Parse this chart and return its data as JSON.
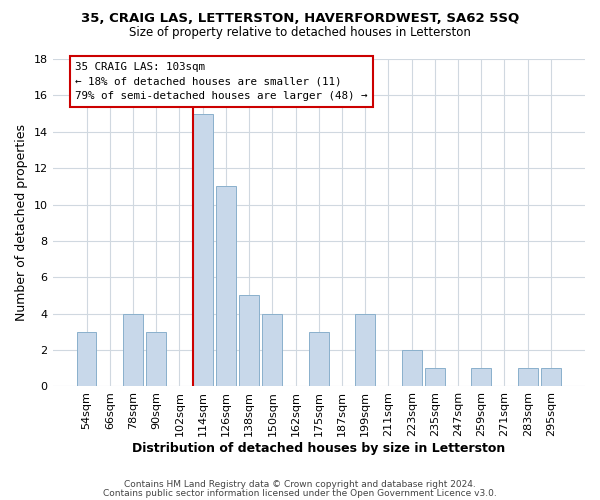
{
  "title1": "35, CRAIG LAS, LETTERSTON, HAVERFORDWEST, SA62 5SQ",
  "title2": "Size of property relative to detached houses in Letterston",
  "xlabel": "Distribution of detached houses by size in Letterston",
  "ylabel": "Number of detached properties",
  "bar_color": "#c8d8ea",
  "bar_edge_color": "#8ab0cc",
  "categories": [
    "54sqm",
    "66sqm",
    "78sqm",
    "90sqm",
    "102sqm",
    "114sqm",
    "126sqm",
    "138sqm",
    "150sqm",
    "162sqm",
    "175sqm",
    "187sqm",
    "199sqm",
    "211sqm",
    "223sqm",
    "235sqm",
    "247sqm",
    "259sqm",
    "271sqm",
    "283sqm",
    "295sqm"
  ],
  "values": [
    3,
    0,
    4,
    3,
    0,
    15,
    11,
    5,
    4,
    0,
    3,
    0,
    4,
    0,
    2,
    1,
    0,
    1,
    0,
    1,
    1
  ],
  "redline_index": 4.58,
  "annotation_text_line1": "35 CRAIG LAS: 103sqm",
  "annotation_text_line2": "← 18% of detached houses are smaller (11)",
  "annotation_text_line3": "79% of semi-detached houses are larger (48) →",
  "annotation_box_color": "#ffffff",
  "annotation_box_edge": "#cc0000",
  "ylim": [
    0,
    18
  ],
  "yticks": [
    0,
    2,
    4,
    6,
    8,
    10,
    12,
    14,
    16,
    18
  ],
  "footnote1": "Contains HM Land Registry data © Crown copyright and database right 2024.",
  "footnote2": "Contains public sector information licensed under the Open Government Licence v3.0.",
  "grid_color": "#d0d8e0",
  "fig_width": 6.0,
  "fig_height": 5.0,
  "dpi": 100
}
